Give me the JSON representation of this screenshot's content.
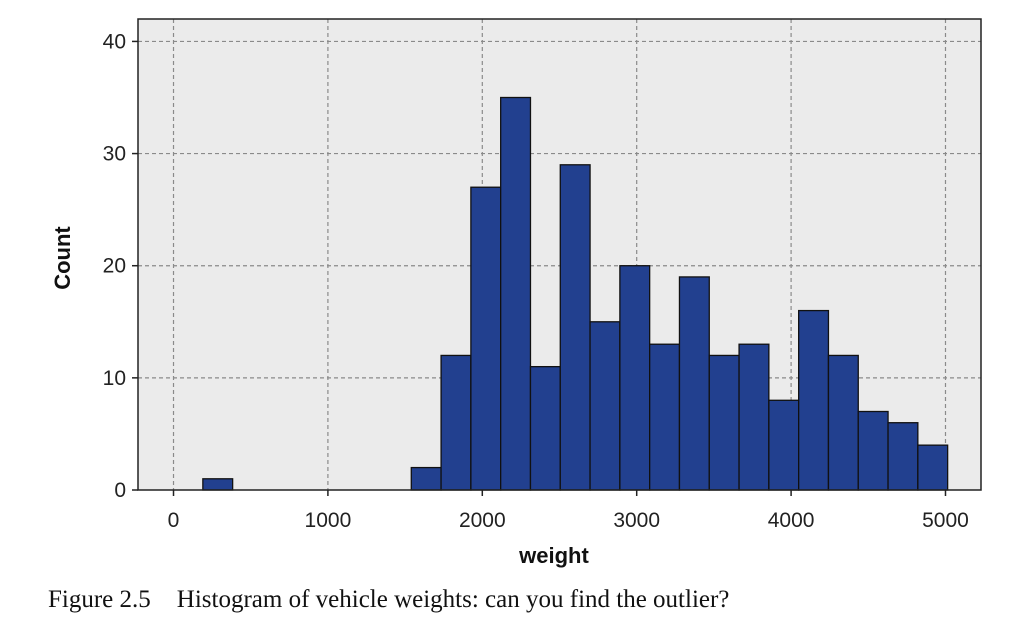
{
  "chart_data": {
    "type": "bar",
    "subtype": "histogram",
    "xlabel": "weight",
    "ylabel": "Count",
    "xlim": [
      -230,
      5230
    ],
    "ylim": [
      0,
      42
    ],
    "xticks": [
      0,
      1000,
      2000,
      3000,
      4000,
      5000
    ],
    "yticks": [
      0,
      10,
      20,
      30,
      40
    ],
    "grid": true,
    "bin_width": 193,
    "bins": [
      {
        "x0": 190,
        "count": 1
      },
      {
        "x0": 1540,
        "count": 2
      },
      {
        "x0": 1733,
        "count": 12
      },
      {
        "x0": 1926,
        "count": 27
      },
      {
        "x0": 2119,
        "count": 35
      },
      {
        "x0": 2312,
        "count": 11
      },
      {
        "x0": 2505,
        "count": 29
      },
      {
        "x0": 2698,
        "count": 15
      },
      {
        "x0": 2891,
        "count": 20
      },
      {
        "x0": 3084,
        "count": 13
      },
      {
        "x0": 3277,
        "count": 19
      },
      {
        "x0": 3470,
        "count": 12
      },
      {
        "x0": 3663,
        "count": 13
      },
      {
        "x0": 3856,
        "count": 8
      },
      {
        "x0": 4049,
        "count": 16
      },
      {
        "x0": 4242,
        "count": 12
      },
      {
        "x0": 4435,
        "count": 7
      },
      {
        "x0": 4628,
        "count": 6
      },
      {
        "x0": 4821,
        "count": 4
      }
    ],
    "bar_color": "#22408f",
    "plot_bg": "#ebebeb"
  },
  "caption": {
    "number": "Figure 2.5",
    "text": "Histogram of vehicle weights: can you find the outlier?"
  }
}
